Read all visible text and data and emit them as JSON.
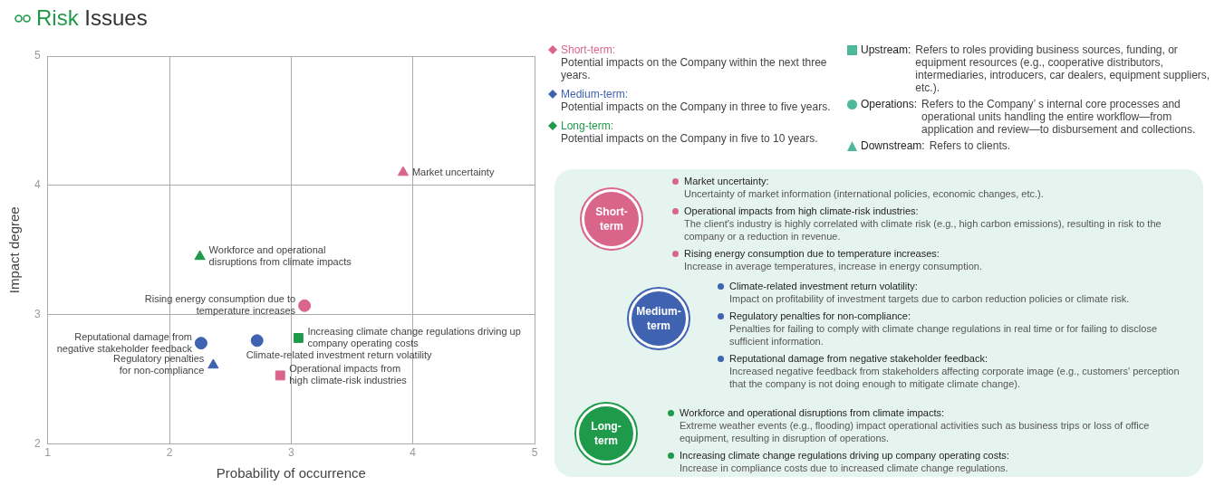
{
  "chart_data": {
    "type": "scatter",
    "title": "Risk Issues",
    "xlabel": "Probability of occurrence",
    "ylabel": "Impact degree",
    "xlim": [
      1,
      5
    ],
    "ylim": [
      2,
      5
    ],
    "xticks": [
      1,
      2,
      3,
      4,
      5
    ],
    "yticks": [
      2,
      3,
      4,
      5
    ],
    "grid": true,
    "legend": false,
    "series": [
      {
        "color": "#d9668a",
        "marker": "triangle",
        "x": [
          3.92
        ],
        "values": [
          4.1
        ]
      },
      {
        "color": "#1f9a4a",
        "marker": "triangle",
        "x": [
          2.25
        ],
        "values": [
          3.45
        ]
      },
      {
        "color": "#d9668a",
        "marker": "circle",
        "x": [
          3.11
        ],
        "values": [
          3.07
        ]
      },
      {
        "color": "#1f9a4a",
        "marker": "square",
        "x": [
          3.06
        ],
        "values": [
          2.82
        ]
      },
      {
        "color": "#3f63b0",
        "marker": "circle",
        "x": [
          2.26
        ],
        "values": [
          2.78
        ]
      },
      {
        "color": "#3f63b0",
        "marker": "circle",
        "x": [
          2.72
        ],
        "values": [
          2.8
        ]
      },
      {
        "color": "#3f63b0",
        "marker": "triangle",
        "x": [
          2.36
        ],
        "values": [
          2.61
        ]
      },
      {
        "color": "#d9668a",
        "marker": "square",
        "x": [
          2.91
        ],
        "values": [
          2.53
        ]
      }
    ],
    "annotations": [
      "Short-term:",
      "Potential impacts on the Company within the next three years.",
      "Medium-term:",
      "Potential impacts on the Company in three to five years.",
      "Long-term:",
      "Potential impacts on the Company in five to 10 years.",
      "Upstream:",
      "Refers to roles providing business sources, funding, or equipment resources (e.g., cooperative distributors, intermediaries, introducers, car dealers, equipment suppliers, etc.).",
      "Operations:",
      "Refers to the Company’ s internal core processes and operational units handling the entire workflow—from application and review—to disbursement and collections.",
      "Downstream:",
      "Refers to clients.",
      "Short-term",
      "Medium-term",
      "Long-term",
      "Market uncertainty:",
      "Uncertainty of market information (international policies, economic changes, etc.).",
      "Operational impacts from high climate-risk industries:",
      "The client's industry is highly correlated with climate risk (e.g., high carbon emissions), resulting in risk to the company or a reduction in revenue.",
      "Rising energy consumption due to temperature increases:",
      "Increase in average temperatures, increase in energy consumption.",
      "Climate-related investment return volatility:",
      "Impact on profitability of investment targets due to carbon reduction policies or climate risk.",
      "Regulatory penalties for non-compliance:",
      "Penalties for failing to comply with climate change regulations in real time or for failing to disclose sufficient information.",
      "Reputational damage from negative stakeholder feedback:",
      "Increased negative feedback from stakeholders affecting corporate image (e.g., customers' perception that the company is not doing enough to mitigate climate change).",
      "Workforce and operational disruptions from climate impacts:",
      "Extreme weather events (e.g., flooding) impact operational activities such as business trips or loss of office equipment, resulting in disruption of operations.",
      "Increasing climate change regulations driving up company operating costs:",
      "Increase in compliance costs due to increased climate change regulations.",
      {
        "text": "Market uncertainty",
        "x": 3.92,
        "y": 4.1
      },
      {
        "text": "Workforce and operational disruptions from climate impacts",
        "x": 2.25,
        "y": 3.45
      },
      {
        "text": "Rising energy consumption due to temperature increases",
        "x": 3.11,
        "y": 3.07
      },
      {
        "text": "Increasing climate change regulations driving up company operating costs",
        "x": 3.06,
        "y": 2.82
      },
      {
        "text": "Reputational damage from negative stakeholder feedback",
        "x": 2.26,
        "y": 2.78
      },
      {
        "text": "Climate-related investment return volatility",
        "x": 2.72,
        "y": 2.8
      },
      {
        "text": "Regulatory penalties for non-compliance",
        "x": 2.36,
        "y": 2.61
      },
      {
        "text": "Operational impacts from high climate-risk industries",
        "x": 2.91,
        "y": 2.53
      }
    ]
  }
}
